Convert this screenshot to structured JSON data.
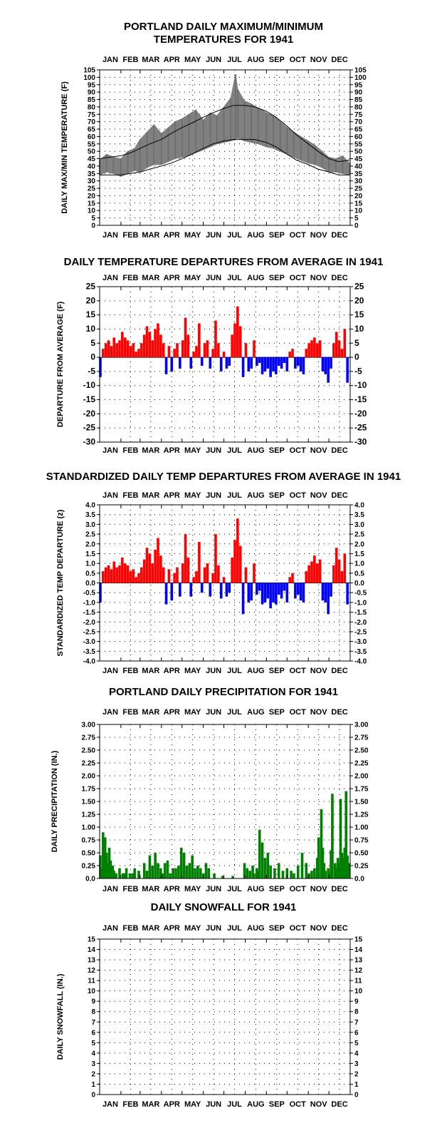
{
  "months": [
    "JAN",
    "FEB",
    "MAR",
    "APR",
    "MAY",
    "JUN",
    "JUL",
    "AUG",
    "SEP",
    "OCT",
    "NOV",
    "DEC"
  ],
  "chart_data": [
    {
      "id": "temp",
      "type": "line",
      "title": [
        "PORTLAND DAILY MAXIMUM/MINIMUM",
        "TEMPERATURES FOR 1941"
      ],
      "ylabel": "DAILY MAX/MIN TEMPERATURE (F)",
      "ylim": [
        0,
        105
      ],
      "yticks": [
        0,
        5,
        10,
        15,
        20,
        25,
        30,
        35,
        40,
        45,
        50,
        55,
        60,
        65,
        70,
        75,
        80,
        85,
        90,
        95,
        100,
        105
      ],
      "grid": "dotted",
      "series": [
        {
          "role": "observed daily range",
          "color": "#808080",
          "x": [
            1,
            11,
            21,
            32,
            42,
            52,
            60,
            70,
            80,
            91,
            101,
            111,
            121,
            131,
            141,
            152,
            162,
            172,
            182,
            192,
            199,
            202,
            212,
            222,
            232,
            244,
            254,
            264,
            274,
            284,
            294,
            305,
            315,
            325,
            335,
            345,
            355,
            365
          ],
          "low": [
            34,
            36,
            35,
            33,
            35,
            37,
            36,
            39,
            41,
            41,
            43,
            45,
            46,
            47,
            49,
            51,
            53,
            55,
            56,
            57,
            58,
            59,
            57,
            56,
            55,
            53,
            52,
            50,
            48,
            46,
            44,
            42,
            41,
            39,
            36,
            36,
            35,
            34
          ],
          "high": [
            44,
            48,
            46,
            45,
            50,
            52,
            58,
            63,
            68,
            62,
            66,
            70,
            72,
            75,
            78,
            71,
            76,
            74,
            80,
            86,
            102,
            92,
            84,
            82,
            79,
            76,
            74,
            70,
            66,
            63,
            60,
            57,
            54,
            50,
            46,
            45,
            47,
            42
          ]
        },
        {
          "role": "normal high",
          "color": "#000000",
          "x": [
            1,
            15,
            32,
            46,
            60,
            74,
            91,
            105,
            121,
            135,
            152,
            166,
            182,
            196,
            213,
            227,
            244,
            258,
            274,
            288,
            305,
            319,
            335,
            349,
            365
          ],
          "values": [
            45,
            46,
            47,
            49,
            52,
            55,
            58,
            62,
            66,
            69,
            73,
            76,
            79,
            81,
            81,
            80,
            77,
            73,
            67,
            61,
            55,
            50,
            45,
            43,
            44
          ]
        },
        {
          "role": "normal low",
          "color": "#000000",
          "x": [
            1,
            15,
            32,
            46,
            60,
            74,
            91,
            105,
            121,
            135,
            152,
            166,
            182,
            196,
            213,
            227,
            244,
            258,
            274,
            288,
            305,
            319,
            335,
            349,
            365
          ],
          "values": [
            34,
            34,
            34,
            35,
            36,
            38,
            40,
            42,
            45,
            48,
            52,
            55,
            57,
            58,
            58,
            58,
            56,
            53,
            48,
            44,
            41,
            38,
            36,
            34,
            34
          ]
        }
      ]
    },
    {
      "id": "departure",
      "type": "bar",
      "title": [
        "DAILY TEMPERATURE DEPARTURES FROM AVERAGE IN 1941"
      ],
      "ylabel": "DEPARTURE FROM AVERAGE (F)",
      "ylim": [
        -30,
        25
      ],
      "yticks": [
        -30,
        -25,
        -20,
        -15,
        -10,
        -5,
        0,
        5,
        10,
        15,
        20,
        25
      ],
      "grid": "dotted",
      "colors": {
        "positive": "#ff0000",
        "negative": "#0000ff"
      },
      "x": [
        2,
        6,
        10,
        14,
        18,
        22,
        26,
        30,
        34,
        38,
        42,
        46,
        50,
        54,
        58,
        62,
        66,
        70,
        74,
        78,
        82,
        86,
        90,
        94,
        98,
        102,
        106,
        110,
        114,
        118,
        122,
        126,
        130,
        134,
        138,
        142,
        146,
        150,
        154,
        158,
        162,
        166,
        170,
        174,
        178,
        182,
        186,
        190,
        194,
        198,
        202,
        206,
        210,
        214,
        218,
        222,
        226,
        230,
        234,
        238,
        242,
        246,
        250,
        254,
        258,
        262,
        266,
        270,
        274,
        278,
        282,
        286,
        290,
        294,
        298,
        302,
        306,
        310,
        314,
        318,
        322,
        326,
        330,
        334,
        338,
        342,
        346,
        350,
        354,
        358,
        362
      ],
      "values": [
        -7,
        3,
        5,
        6,
        4,
        7,
        5,
        6,
        9,
        7,
        6,
        4,
        5,
        2,
        3,
        5,
        8,
        11,
        9,
        6,
        10,
        12,
        8,
        5,
        -6,
        4,
        -5,
        3,
        5,
        -4,
        6,
        14,
        8,
        -4,
        2,
        4,
        12,
        -3,
        5,
        6,
        -4,
        3,
        13,
        5,
        -5,
        2,
        -4,
        -3,
        8,
        12,
        18,
        11,
        -7,
        5,
        -5,
        -4,
        6,
        -3,
        -2,
        -6,
        -5,
        -4,
        -7,
        -5,
        -6,
        -3,
        -4,
        -2,
        -5,
        2,
        3,
        -4,
        -3,
        -5,
        -6,
        3,
        5,
        6,
        7,
        5,
        6,
        -5,
        -6,
        -9,
        -4,
        5,
        9,
        6,
        3,
        10,
        -9
      ]
    },
    {
      "id": "standardized",
      "type": "bar",
      "title": [
        "STANDARDIZED DAILY TEMP DEPARTURES FROM AVERAGE IN 1941"
      ],
      "ylabel": "STANDARDIZED TEMP DEPARTURE (z)",
      "ylim": [
        -4.0,
        4.0
      ],
      "yticks": [
        -4.0,
        -3.5,
        -3.0,
        -2.5,
        -2.0,
        -1.5,
        -1.0,
        -0.5,
        0.0,
        0.5,
        1.0,
        1.5,
        2.0,
        2.5,
        3.0,
        3.5,
        4.0
      ],
      "grid": "dotted",
      "colors": {
        "positive": "#ff0000",
        "negative": "#0000ff"
      },
      "x": [
        2,
        6,
        10,
        14,
        18,
        22,
        26,
        30,
        34,
        38,
        42,
        46,
        50,
        54,
        58,
        62,
        66,
        70,
        74,
        78,
        82,
        86,
        90,
        94,
        98,
        102,
        106,
        110,
        114,
        118,
        122,
        126,
        130,
        134,
        138,
        142,
        146,
        150,
        154,
        158,
        162,
        166,
        170,
        174,
        178,
        182,
        186,
        190,
        194,
        198,
        202,
        206,
        210,
        214,
        218,
        222,
        226,
        230,
        234,
        238,
        242,
        246,
        250,
        254,
        258,
        262,
        266,
        270,
        274,
        278,
        282,
        286,
        290,
        294,
        298,
        302,
        306,
        310,
        314,
        318,
        322,
        326,
        330,
        334,
        338,
        342,
        346,
        350,
        354,
        358,
        362
      ],
      "values": [
        -1.0,
        0.6,
        0.8,
        0.9,
        0.7,
        1.1,
        0.8,
        0.9,
        1.3,
        1.0,
        0.9,
        0.6,
        0.7,
        0.3,
        0.5,
        0.8,
        1.2,
        1.8,
        1.5,
        1.0,
        1.7,
        2.3,
        1.4,
        0.8,
        -1.1,
        0.7,
        -0.9,
        0.5,
        0.8,
        -0.7,
        1.0,
        2.5,
        1.3,
        -0.7,
        0.3,
        0.6,
        2.1,
        -0.5,
        0.8,
        1.0,
        -0.7,
        0.5,
        2.5,
        0.9,
        -0.8,
        0.3,
        -0.7,
        -0.5,
        1.3,
        2.2,
        3.3,
        1.9,
        -1.6,
        0.8,
        -1.0,
        -0.9,
        1.0,
        -0.6,
        -0.4,
        -1.1,
        -1.0,
        -0.8,
        -1.3,
        -1.0,
        -1.1,
        -0.6,
        -0.8,
        -0.4,
        -1.0,
        0.3,
        0.5,
        -0.8,
        -0.6,
        -0.9,
        -1.0,
        0.6,
        0.9,
        1.1,
        1.4,
        1.0,
        1.2,
        -0.9,
        -1.0,
        -1.6,
        -0.7,
        0.9,
        1.8,
        1.2,
        0.6,
        1.5,
        -1.1
      ]
    },
    {
      "id": "precip",
      "type": "bar",
      "title": [
        "PORTLAND DAILY PRECIPITATION FOR 1941"
      ],
      "ylabel": "DAILY PRECIPITATION (IN.)",
      "ylim": [
        0.0,
        3.0
      ],
      "yticks": [
        0.0,
        0.25,
        0.5,
        0.75,
        1.0,
        1.25,
        1.5,
        1.75,
        2.0,
        2.25,
        2.5,
        2.75,
        3.0
      ],
      "yticklabels": [
        "0.0",
        "0.25",
        "0.50",
        "0.75",
        "1.00",
        "1.25",
        "1.50",
        "1.75",
        "2.00",
        "2.25",
        "2.50",
        "2.75",
        "3.00"
      ],
      "grid": "dotted",
      "color": "#008000",
      "x": [
        2,
        4,
        6,
        7,
        9,
        11,
        13,
        15,
        17,
        20,
        22,
        25,
        30,
        35,
        37,
        40,
        45,
        49,
        52,
        58,
        66,
        70,
        74,
        78,
        82,
        86,
        90,
        93,
        96,
        100,
        104,
        108,
        112,
        116,
        120,
        124,
        128,
        132,
        136,
        140,
        144,
        148,
        152,
        156,
        160,
        168,
        180,
        195,
        212,
        216,
        220,
        224,
        226,
        230,
        232,
        234,
        238,
        242,
        246,
        250,
        256,
        262,
        268,
        274,
        280,
        284,
        290,
        296,
        302,
        306,
        310,
        314,
        318,
        320,
        324,
        326,
        328,
        330,
        334,
        336,
        338,
        340,
        344,
        346,
        348,
        350,
        352,
        354,
        356,
        358,
        360,
        362,
        364
      ],
      "values": [
        0.45,
        0.2,
        0.9,
        0.6,
        0.8,
        0.5,
        0.3,
        0.6,
        0.35,
        0.25,
        0.15,
        0.1,
        0.2,
        0.1,
        0.1,
        0.2,
        0.1,
        0.1,
        0.2,
        0.15,
        0.3,
        0.15,
        0.45,
        0.25,
        0.5,
        0.3,
        0.2,
        0.1,
        0.3,
        0.35,
        0.1,
        0.2,
        0.2,
        0.25,
        0.6,
        0.5,
        0.25,
        0.3,
        0.45,
        0.2,
        0.25,
        0.2,
        0.1,
        0.3,
        0.2,
        0.1,
        0.05,
        0.05,
        0.3,
        0.2,
        0.15,
        0.25,
        0.1,
        0.2,
        0.15,
        0.95,
        0.7,
        0.4,
        0.5,
        0.25,
        0.2,
        0.3,
        0.15,
        0.2,
        0.15,
        0.1,
        0.25,
        0.5,
        0.3,
        0.1,
        0.15,
        0.2,
        0.4,
        0.8,
        1.35,
        0.6,
        0.3,
        0.15,
        0.2,
        0.1,
        0.55,
        1.65,
        0.3,
        0.2,
        0.4,
        0.3,
        1.55,
        0.5,
        0.4,
        0.6,
        1.7,
        0.45,
        0.3
      ],
      "ytick_right": true
    },
    {
      "id": "snow",
      "type": "bar",
      "title": [
        "DAILY SNOWFALL FOR 1941"
      ],
      "ylabel": "DAILY SNOWFALL (IN.)",
      "ylim": [
        0,
        15
      ],
      "yticks": [
        0,
        1,
        2,
        3,
        4,
        5,
        6,
        7,
        8,
        9,
        10,
        11,
        12,
        13,
        14,
        15
      ],
      "grid": "dotted",
      "color": "#0000ff",
      "x": [],
      "values": []
    }
  ]
}
